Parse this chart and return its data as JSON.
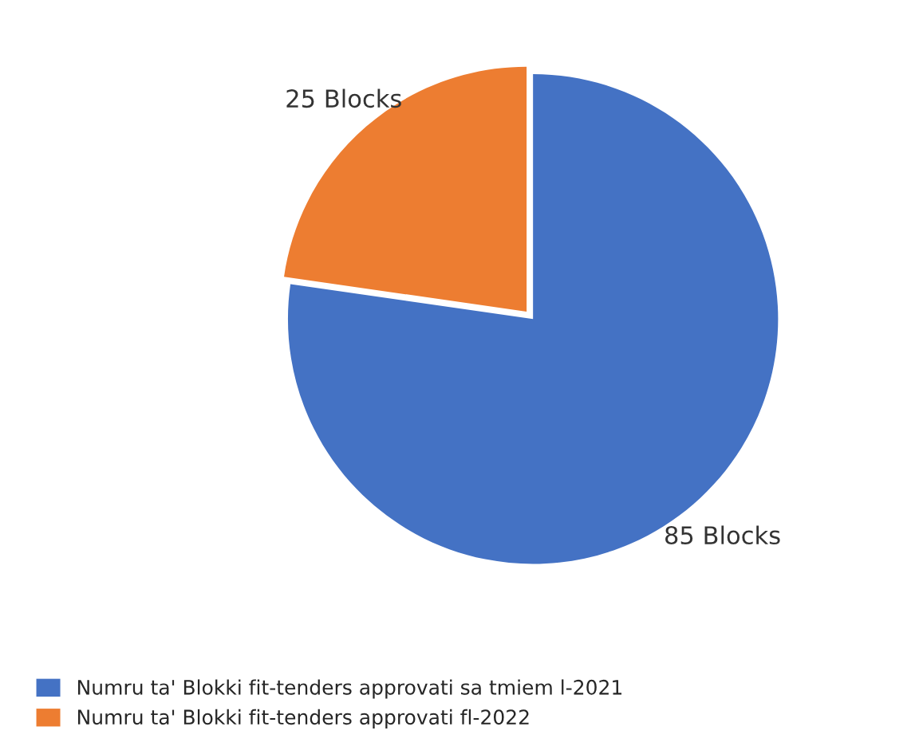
{
  "chart_data": {
    "type": "pie",
    "categories": [
      "Numru ta' Blokki fit-tenders approvati sa tmiem l-2021",
      "Numru ta' Blokki fit-tenders approvati fl-2022"
    ],
    "values": [
      85,
      25
    ],
    "colors": [
      "#4472c4",
      "#ed7d31"
    ],
    "value_labels": [
      "85 Blocks",
      "25 Blocks"
    ],
    "legend": "bottom left"
  }
}
